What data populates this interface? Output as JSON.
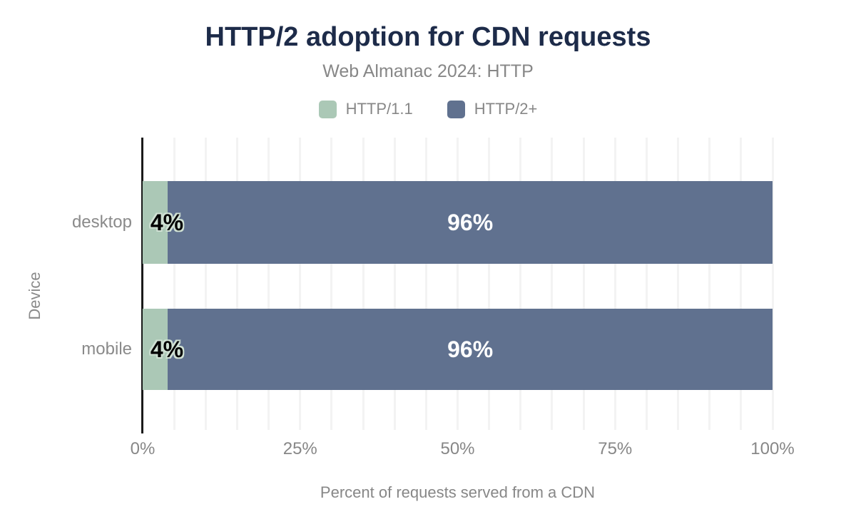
{
  "header": {
    "title": "HTTP/2 adoption for CDN requests",
    "subtitle": "Web Almanac 2024: HTTP"
  },
  "chart_data": {
    "type": "bar",
    "orientation": "horizontal",
    "stacked": true,
    "grid": true,
    "categories": [
      "desktop",
      "mobile"
    ],
    "series": [
      {
        "name": "HTTP/1.1",
        "color": "#abc8b6",
        "values": [
          4,
          4
        ],
        "data_labels": [
          "4%",
          "4%"
        ],
        "label_style": {
          "color": "#000000",
          "outline": "#cfe0d3"
        }
      },
      {
        "name": "HTTP/2+",
        "color": "#60718f",
        "values": [
          96,
          96
        ],
        "data_labels": [
          "96%",
          "96%"
        ],
        "label_style": {
          "color": "#ffffff"
        }
      }
    ],
    "xlabel": "Percent of requests served from a CDN",
    "ylabel": "Device",
    "xlim": [
      0,
      100
    ],
    "xticks": [
      {
        "value": 0,
        "label": "0%"
      },
      {
        "value": 25,
        "label": "25%"
      },
      {
        "value": 50,
        "label": "50%"
      },
      {
        "value": 75,
        "label": "75%"
      },
      {
        "value": 100,
        "label": "100%"
      }
    ],
    "grid_step": 5,
    "legend_position": "top"
  },
  "colors": {
    "title": "#1d2b49",
    "muted_text": "#878787",
    "axis_line": "#1a1a1a",
    "gridline": "#f3f3f3",
    "background": "#ffffff"
  }
}
